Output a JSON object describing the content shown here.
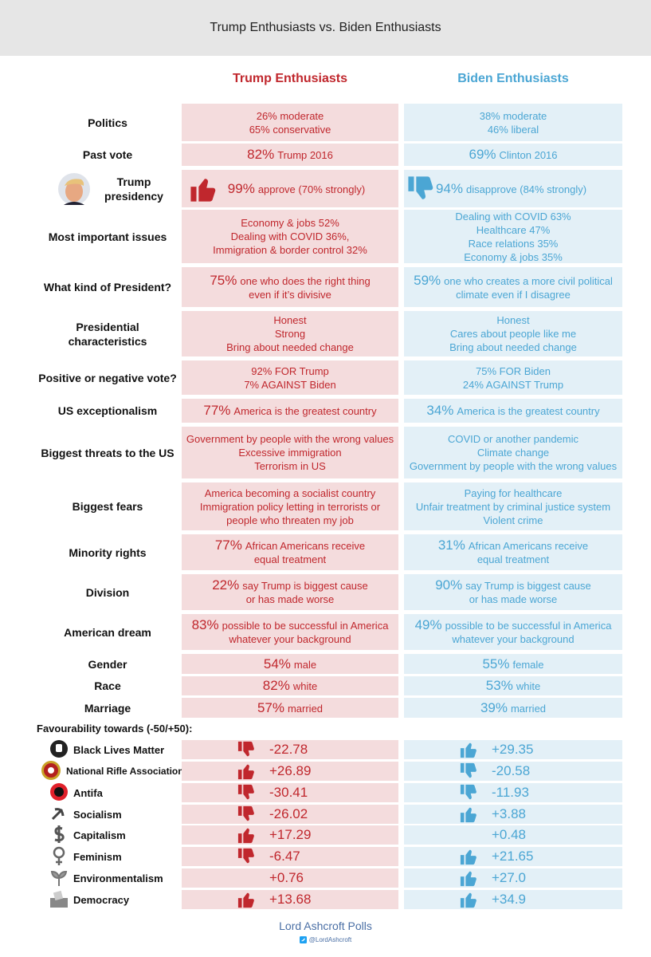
{
  "header": {
    "title": "Trump Enthusiasts vs. Biden Enthusiasts"
  },
  "columns": {
    "trump": "Trump Enthusiasts",
    "biden": "Biden Enthusiasts"
  },
  "rows": [
    {
      "label": "Politics",
      "trump": {
        "lines": [
          "26% moderate",
          "65% conservative"
        ]
      },
      "biden": {
        "lines": [
          "38% moderate",
          "46% liberal"
        ]
      }
    },
    {
      "label": "Past vote",
      "trump": {
        "stat": "82%",
        "lines": [
          "Trump 2016"
        ]
      },
      "biden": {
        "stat": "69%",
        "lines": [
          "Clinton 2016"
        ]
      }
    },
    {
      "label": "Trump presidency",
      "trump": {
        "stat": "99%",
        "lines": [
          "approve  (70% strongly)"
        ]
      },
      "biden": {
        "stat": "94%",
        "lines": [
          "disapprove (84% strongly)"
        ]
      }
    },
    {
      "label": "Most important issues",
      "trump": {
        "lines": [
          "Economy & jobs 52%",
          "Dealing with COVID 36%,",
          "Immigration & border control 32%"
        ]
      },
      "biden": {
        "lines": [
          "Dealing with COVID 63%",
          "Healthcare 47%",
          "Race relations 35%",
          "Economy & jobs 35%"
        ]
      }
    },
    {
      "label": "What kind of President?",
      "trump": {
        "stat": "75%",
        "lines": [
          "one who does the right thing",
          "even if it’s divisive"
        ]
      },
      "biden": {
        "stat": "59%",
        "lines": [
          "one who creates a more civil political",
          "climate even if I disagree"
        ]
      }
    },
    {
      "label": "Presidential characteristics",
      "trump": {
        "lines": [
          "Honest",
          "Strong",
          "Bring about needed change"
        ]
      },
      "biden": {
        "lines": [
          "Honest",
          "Cares about people like me",
          "Bring about needed change"
        ]
      }
    },
    {
      "label": "Positive or negative vote?",
      "trump": {
        "lines": [
          "92% FOR Trump",
          "7% AGAINST Biden"
        ]
      },
      "biden": {
        "lines": [
          "75% FOR Biden",
          "24% AGAINST Trump"
        ]
      }
    },
    {
      "label": "US exceptionalism",
      "trump": {
        "stat": "77%",
        "lines": [
          "America is the greatest country"
        ]
      },
      "biden": {
        "stat": "34%",
        "lines": [
          "America is the greatest country"
        ]
      }
    },
    {
      "label": "Biggest threats to the US",
      "trump": {
        "lines": [
          "Government by people with the wrong values",
          "Excessive immigration",
          "Terrorism in US"
        ]
      },
      "biden": {
        "lines": [
          "COVID or another pandemic",
          "Climate change",
          "Government by people with the wrong values"
        ]
      }
    },
    {
      "label": "Biggest fears",
      "trump": {
        "lines": [
          "America becoming a socialist country",
          "Immigration policy letting in terrorists or",
          "people who threaten my job"
        ]
      },
      "biden": {
        "lines": [
          "Paying for healthcare",
          "Unfair treatment by criminal justice system",
          "Violent crime"
        ]
      }
    },
    {
      "label": "Minority rights",
      "trump": {
        "stat": "77%",
        "lines": [
          "African Americans receive",
          "equal treatment"
        ]
      },
      "biden": {
        "stat": "31%",
        "lines": [
          "African Americans receive",
          "equal treatment"
        ]
      }
    },
    {
      "label": "Division",
      "trump": {
        "stat": "22%",
        "lines": [
          "say Trump is biggest cause",
          "or has made worse"
        ]
      },
      "biden": {
        "stat": "90%",
        "lines": [
          "say Trump is biggest cause",
          "or has made worse"
        ]
      }
    },
    {
      "label": "American dream",
      "trump": {
        "stat": "83%",
        "lines": [
          "possible to be successful in America",
          "whatever your background"
        ]
      },
      "biden": {
        "stat": "49%",
        "lines": [
          "possible to be successful in America",
          "whatever your background"
        ]
      }
    },
    {
      "label": "Gender",
      "trump": {
        "stat": "54%",
        "lines": [
          "male"
        ]
      },
      "biden": {
        "stat": "55%",
        "lines": [
          "female"
        ]
      }
    },
    {
      "label": "Race",
      "trump": {
        "stat": "82%",
        "lines": [
          "white"
        ]
      },
      "biden": {
        "stat": "53%",
        "lines": [
          "white"
        ]
      }
    },
    {
      "label": "Marriage",
      "trump": {
        "stat": "57%",
        "lines": [
          "married"
        ]
      },
      "biden": {
        "stat": "39%",
        "lines": [
          "married"
        ]
      }
    }
  ],
  "favourability": {
    "title": "Favourability towards (-50/+50):",
    "rows": [
      {
        "label": "Black Lives Matter",
        "trump": "-22.78",
        "trump_thumb": "down",
        "biden": "+29.35",
        "biden_thumb": "up"
      },
      {
        "label": "National Rifle Association",
        "trump": "+26.89",
        "trump_thumb": "up",
        "biden": "-20.58",
        "biden_thumb": "down"
      },
      {
        "label": "Antifa",
        "trump": "-30.41",
        "trump_thumb": "down",
        "biden": "-11.93",
        "biden_thumb": "down"
      },
      {
        "label": "Socialism",
        "trump": "-26.02",
        "trump_thumb": "down",
        "biden": "+3.88",
        "biden_thumb": "up"
      },
      {
        "label": "Capitalism",
        "trump": "+17.29",
        "trump_thumb": "up",
        "biden": "+0.48"
      },
      {
        "label": "Feminism",
        "trump": "-6.47",
        "trump_thumb": "down",
        "biden": "+21.65",
        "biden_thumb": "up"
      },
      {
        "label": "Environmentalism",
        "trump": "+0.76",
        "biden": "+27.0",
        "biden_thumb": "up"
      },
      {
        "label": "Democracy",
        "trump": "+13.68",
        "trump_thumb": "up",
        "biden": "+34.9",
        "biden_thumb": "up"
      }
    ]
  },
  "footer": {
    "source": "Lord Ashcroft Polls",
    "handle": "@LordAshcroft"
  }
}
